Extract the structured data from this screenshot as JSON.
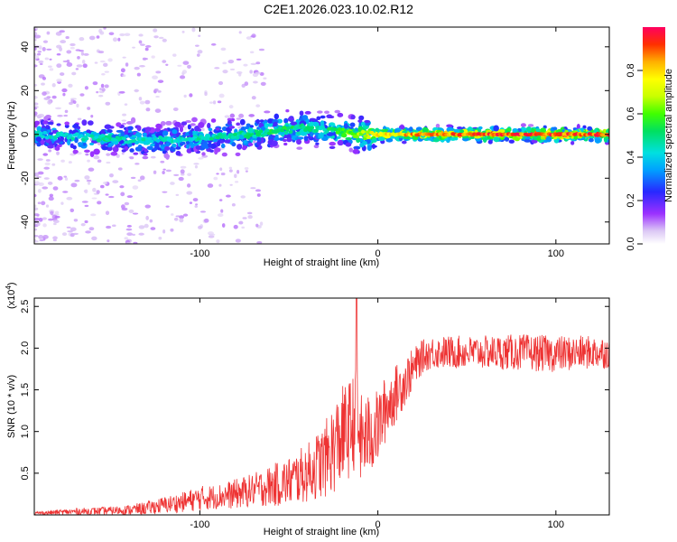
{
  "title": "C2E1.2026.023.10.02.R12",
  "chart_data": [
    {
      "type": "heatmap",
      "xlabel": "Height of straight line (km)",
      "ylabel": "Frequency (Hz)",
      "xlim": [
        -193,
        130
      ],
      "ylim": [
        -50,
        49
      ],
      "xticks": [
        -100,
        0,
        100
      ],
      "xtick_labels": [
        "-100",
        "0",
        "100"
      ],
      "yticks": [
        -40,
        -20,
        0,
        20,
        40
      ],
      "ytick_labels": [
        "-40",
        "-20",
        "0",
        "20",
        "40"
      ],
      "colorbar": {
        "label": "Normalized spectral amplitude",
        "range": [
          0,
          1
        ],
        "ticks": [
          0.0,
          0.2,
          0.4,
          0.6,
          0.8
        ],
        "tick_labels": [
          "0.0",
          "0.2",
          "0.4",
          "0.6",
          "0.8"
        ]
      },
      "ridge": {
        "x": [
          -193,
          -170,
          -150,
          -130,
          -110,
          -90,
          -70,
          -55,
          -40,
          -30,
          -20,
          -10,
          0,
          10,
          30,
          60,
          100,
          130
        ],
        "frequency": [
          0,
          -1,
          -2,
          -3,
          -2,
          -1,
          0,
          2,
          3,
          2,
          1,
          0,
          0,
          0,
          0,
          0,
          0,
          0
        ],
        "amplitude": [
          0.45,
          0.45,
          0.5,
          0.45,
          0.45,
          0.5,
          0.5,
          0.55,
          0.5,
          0.5,
          0.6,
          0.7,
          0.8,
          0.85,
          0.9,
          0.95,
          0.95,
          0.95
        ]
      }
    },
    {
      "type": "line",
      "xlabel": "Height of straight line (km)",
      "ylabel": "SNR (10 * v/v)",
      "ylabel_multiplier": "(x10",
      "ylabel_multiplier_exp": "4",
      "ylabel_multiplier_close": ")",
      "xlim": [
        -193,
        130
      ],
      "ylim": [
        0,
        2.6
      ],
      "xticks": [
        -100,
        0,
        100
      ],
      "xtick_labels": [
        "-100",
        "0",
        "100"
      ],
      "yticks": [
        0.5,
        1.0,
        1.5,
        2.0,
        2.5
      ],
      "ytick_labels": [
        "0.5",
        "1.0",
        "1.5",
        "2.0",
        "2.5"
      ],
      "color": "#ee3333",
      "envelope": {
        "x": [
          -193,
          -170,
          -150,
          -140,
          -130,
          -120,
          -110,
          -100,
          -90,
          -80,
          -70,
          -60,
          -50,
          -40,
          -30,
          -25,
          -20,
          -15,
          -12,
          -10,
          -5,
          0,
          5,
          10,
          15,
          20,
          25,
          30,
          40,
          60,
          80,
          100,
          120,
          130
        ],
        "mean": [
          0.02,
          0.04,
          0.05,
          0.06,
          0.08,
          0.12,
          0.15,
          0.2,
          0.22,
          0.25,
          0.3,
          0.35,
          0.4,
          0.5,
          0.65,
          0.8,
          0.95,
          1.05,
          1.2,
          0.9,
          0.95,
          1.05,
          1.3,
          1.45,
          1.6,
          1.75,
          1.9,
          1.95,
          1.95,
          1.95,
          1.95,
          1.93,
          1.95,
          1.95
        ],
        "spread": [
          0.02,
          0.04,
          0.05,
          0.06,
          0.08,
          0.1,
          0.12,
          0.15,
          0.15,
          0.18,
          0.2,
          0.25,
          0.3,
          0.35,
          0.45,
          0.55,
          0.6,
          0.6,
          0.6,
          0.55,
          0.5,
          0.45,
          0.4,
          0.35,
          0.3,
          0.25,
          0.2,
          0.2,
          0.2,
          0.2,
          0.22,
          0.22,
          0.2,
          0.2
        ]
      },
      "peak": {
        "x": -12,
        "y": 2.6
      }
    }
  ]
}
